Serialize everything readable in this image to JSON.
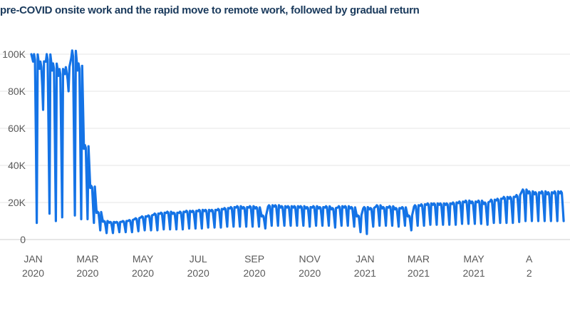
{
  "chart_data": {
    "type": "line",
    "title": "pre-COVID onsite work and the rapid move to remote work, followed by gradual return",
    "xlabel": "",
    "ylabel": "",
    "ylim": [
      0,
      100000
    ],
    "xlim": [
      "2019-12-30",
      "2021-08-15"
    ],
    "grid": true,
    "legend": "none",
    "line_color": "#1473e6",
    "y_ticks": [
      {
        "value": 0,
        "label": "0"
      },
      {
        "value": 20000,
        "label": "20K"
      },
      {
        "value": 40000,
        "label": "40K"
      },
      {
        "value": 60000,
        "label": "60K"
      },
      {
        "value": 80000,
        "label": "80K"
      },
      {
        "value": 100000,
        "label": "100K"
      }
    ],
    "x_ticks": [
      {
        "date": "2020-01-01",
        "month": "JAN",
        "year": "2020"
      },
      {
        "date": "2020-03-01",
        "month": "MAR",
        "year": "2020"
      },
      {
        "date": "2020-05-01",
        "month": "MAY",
        "year": "2020"
      },
      {
        "date": "2020-07-01",
        "month": "JUL",
        "year": "2020"
      },
      {
        "date": "2020-09-01",
        "month": "SEP",
        "year": "2020"
      },
      {
        "date": "2020-11-01",
        "month": "NOV",
        "year": "2020"
      },
      {
        "date": "2021-01-01",
        "month": "JAN",
        "year": "2021"
      },
      {
        "date": "2021-03-01",
        "month": "MAR",
        "year": "2021"
      },
      {
        "date": "2021-05-01",
        "month": "MAY",
        "year": "2021"
      },
      {
        "date": "2021-07-01",
        "month": "A",
        "year": "2"
      }
    ],
    "series": [
      {
        "weekly_peak_daily_counts": {
          "dates": [
            "2020-01-02",
            "2020-01-09",
            "2020-01-16",
            "2020-01-23",
            "2020-01-30",
            "2020-02-06",
            "2020-02-13",
            "2020-02-20",
            "2020-02-27",
            "2020-03-05",
            "2020-03-12",
            "2020-03-19",
            "2020-03-26",
            "2020-04-02",
            "2020-04-09",
            "2020-04-16",
            "2020-04-23",
            "2020-04-30",
            "2020-05-07",
            "2020-05-14",
            "2020-05-21",
            "2020-05-28",
            "2020-06-04",
            "2020-06-11",
            "2020-06-18",
            "2020-06-25",
            "2020-07-02",
            "2020-07-09",
            "2020-07-16",
            "2020-07-23",
            "2020-07-30",
            "2020-08-06",
            "2020-08-13",
            "2020-08-20",
            "2020-08-27",
            "2020-09-03",
            "2020-09-10",
            "2020-09-17",
            "2020-09-24",
            "2020-10-01",
            "2020-10-08",
            "2020-10-15",
            "2020-10-22",
            "2020-10-29",
            "2020-11-05",
            "2020-11-12",
            "2020-11-19",
            "2020-11-26",
            "2020-12-03",
            "2020-12-10",
            "2020-12-17",
            "2020-12-24",
            "2020-12-31",
            "2021-01-07",
            "2021-01-14",
            "2021-01-21",
            "2021-01-28",
            "2021-02-04",
            "2021-02-11",
            "2021-02-18",
            "2021-02-25",
            "2021-03-04",
            "2021-03-11",
            "2021-03-18",
            "2021-03-25",
            "2021-04-01",
            "2021-04-08",
            "2021-04-15",
            "2021-04-22",
            "2021-04-29",
            "2021-05-06",
            "2021-05-13",
            "2021-05-20",
            "2021-05-27",
            "2021-06-03",
            "2021-06-10",
            "2021-06-17",
            "2021-06-24",
            "2021-07-01",
            "2021-07-08",
            "2021-07-15",
            "2021-07-22",
            "2021-07-29",
            "2021-08-05"
          ],
          "peak": [
            100000,
            96000,
            100000,
            95000,
            92000,
            93000,
            102000,
            95000,
            51000,
            29000,
            15000,
            10000,
            9500,
            9500,
            10000,
            10500,
            11500,
            12500,
            13000,
            14000,
            14500,
            15000,
            14500,
            15000,
            15500,
            15500,
            16000,
            16000,
            16000,
            16500,
            17000,
            17500,
            18000,
            17500,
            18000,
            17500,
            13000,
            18500,
            18500,
            18000,
            18000,
            18000,
            18000,
            17500,
            18000,
            17500,
            18000,
            17000,
            18000,
            18000,
            17500,
            13000,
            17500,
            17000,
            18500,
            17500,
            18000,
            17000,
            17500,
            13000,
            18500,
            19000,
            19500,
            19500,
            19500,
            19500,
            20000,
            20500,
            21000,
            20500,
            21000,
            20000,
            21500,
            22000,
            23000,
            23000,
            24000,
            27000,
            26000,
            25500,
            26000,
            25500,
            26000,
            26000
          ],
          "low": [
            9000,
            70000,
            14000,
            10000,
            12000,
            80000,
            13000,
            11000,
            11000,
            9000,
            5000,
            3500,
            3500,
            4000,
            4000,
            4000,
            4500,
            5000,
            5000,
            5000,
            5500,
            5500,
            5500,
            5500,
            6000,
            6000,
            6000,
            6500,
            6500,
            6500,
            7000,
            7000,
            7000,
            7000,
            7000,
            7000,
            6000,
            7500,
            7500,
            7500,
            7500,
            7500,
            7500,
            7000,
            7500,
            7500,
            7500,
            6500,
            7500,
            7500,
            7000,
            4000,
            3000,
            7000,
            7500,
            7500,
            7500,
            7000,
            7500,
            5000,
            7500,
            7500,
            8000,
            8000,
            8000,
            8000,
            8000,
            8500,
            8500,
            8500,
            8500,
            8000,
            9000,
            9000,
            9000,
            9000,
            9500,
            10000,
            10000,
            10000,
            10000,
            10000,
            10000,
            10000
          ]
        }
      }
    ]
  }
}
